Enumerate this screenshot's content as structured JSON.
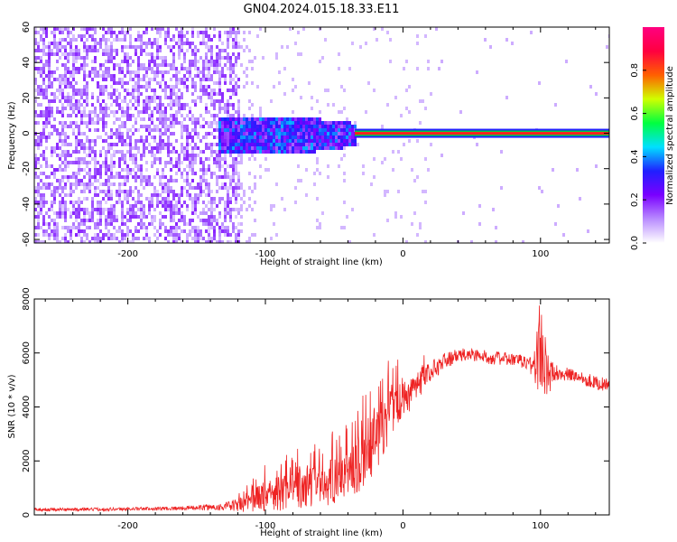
{
  "title": "GN04.2024.015.18.33.E11",
  "chart_data": [
    {
      "type": "heatmap",
      "xlabel": "Height of straight line (km)",
      "ylabel": "Frequency (Hz)",
      "xlim": [
        -268,
        150
      ],
      "ylim": [
        -62,
        60
      ],
      "xticks": [
        -200,
        -100,
        0,
        100
      ],
      "xtick_labels": [
        "-200",
        "-100",
        "0",
        "100"
      ],
      "yticks": [
        -60,
        -40,
        -20,
        0,
        20,
        40,
        60
      ],
      "ytick_labels": [
        "-60",
        "-40",
        "-20",
        "0",
        "20",
        "40",
        "60"
      ],
      "colorbar": {
        "label": "Normalized spectral amplitude",
        "range": [
          0,
          1
        ],
        "ticks": [
          0,
          0.2,
          0.4,
          0.6,
          0.8
        ],
        "tick_labels": [
          "0.0",
          "0.2",
          "0.4",
          "0.6",
          "0.8"
        ],
        "colormap": [
          "#ffffff",
          "#b98cff",
          "#7a00ff",
          "#2020ff",
          "#00e0ff",
          "#00ff40",
          "#d0ff00",
          "#ff6000",
          "#ff0040",
          "#ff0080"
        ]
      },
      "features": [
        {
          "description": "broadband scattered noise",
          "x_range": [
            -268,
            -120
          ],
          "f_range": [
            -62,
            60
          ],
          "amplitude": 0.15
        },
        {
          "description": "concentrated meteor signal",
          "x_range": [
            -135,
            -35
          ],
          "f_range": [
            -10,
            10
          ],
          "amplitude": 0.35
        },
        {
          "description": "narrow carrier line",
          "x_range": [
            -35,
            150
          ],
          "f_center": 0,
          "amplitude": 0.9
        }
      ]
    },
    {
      "type": "line",
      "xlabel": "Height of straight line (km)",
      "ylabel": "SNR (10 * v/v)",
      "xlim": [
        -268,
        150
      ],
      "ylim": [
        0,
        8000
      ],
      "xticks": [
        -200,
        -100,
        0,
        100
      ],
      "xtick_labels": [
        "-200",
        "-100",
        "0",
        "100"
      ],
      "yticks": [
        0,
        2000,
        4000,
        6000,
        8000
      ],
      "ytick_labels": [
        "0",
        "2000",
        "4000",
        "6000",
        "8000"
      ],
      "color": "#ee2222",
      "series": [
        {
          "x": [
            -268,
            -240,
            -200,
            -160,
            -130,
            -115,
            -100,
            -80,
            -60,
            -50,
            -40,
            -30,
            -20,
            -10,
            0,
            10,
            20,
            30,
            40,
            50,
            60,
            70,
            80,
            90,
            95,
            100,
            105,
            110,
            120,
            130,
            140,
            150
          ],
          "values": [
            200,
            200,
            220,
            250,
            300,
            400,
            700,
            900,
            1100,
            1300,
            1500,
            2000,
            2800,
            3600,
            4200,
            4700,
            5300,
            5700,
            5900,
            5950,
            5850,
            5800,
            5750,
            5650,
            5500,
            6200,
            5100,
            5300,
            5200,
            5100,
            4900,
            4800
          ],
          "noise": [
            60,
            60,
            60,
            70,
            150,
            300,
            600,
            700,
            800,
            900,
            900,
            1100,
            1200,
            1000,
            700,
            500,
            400,
            300,
            250,
            250,
            250,
            250,
            250,
            250,
            600,
            2000,
            900,
            300,
            250,
            250,
            250,
            250
          ]
        }
      ]
    }
  ]
}
